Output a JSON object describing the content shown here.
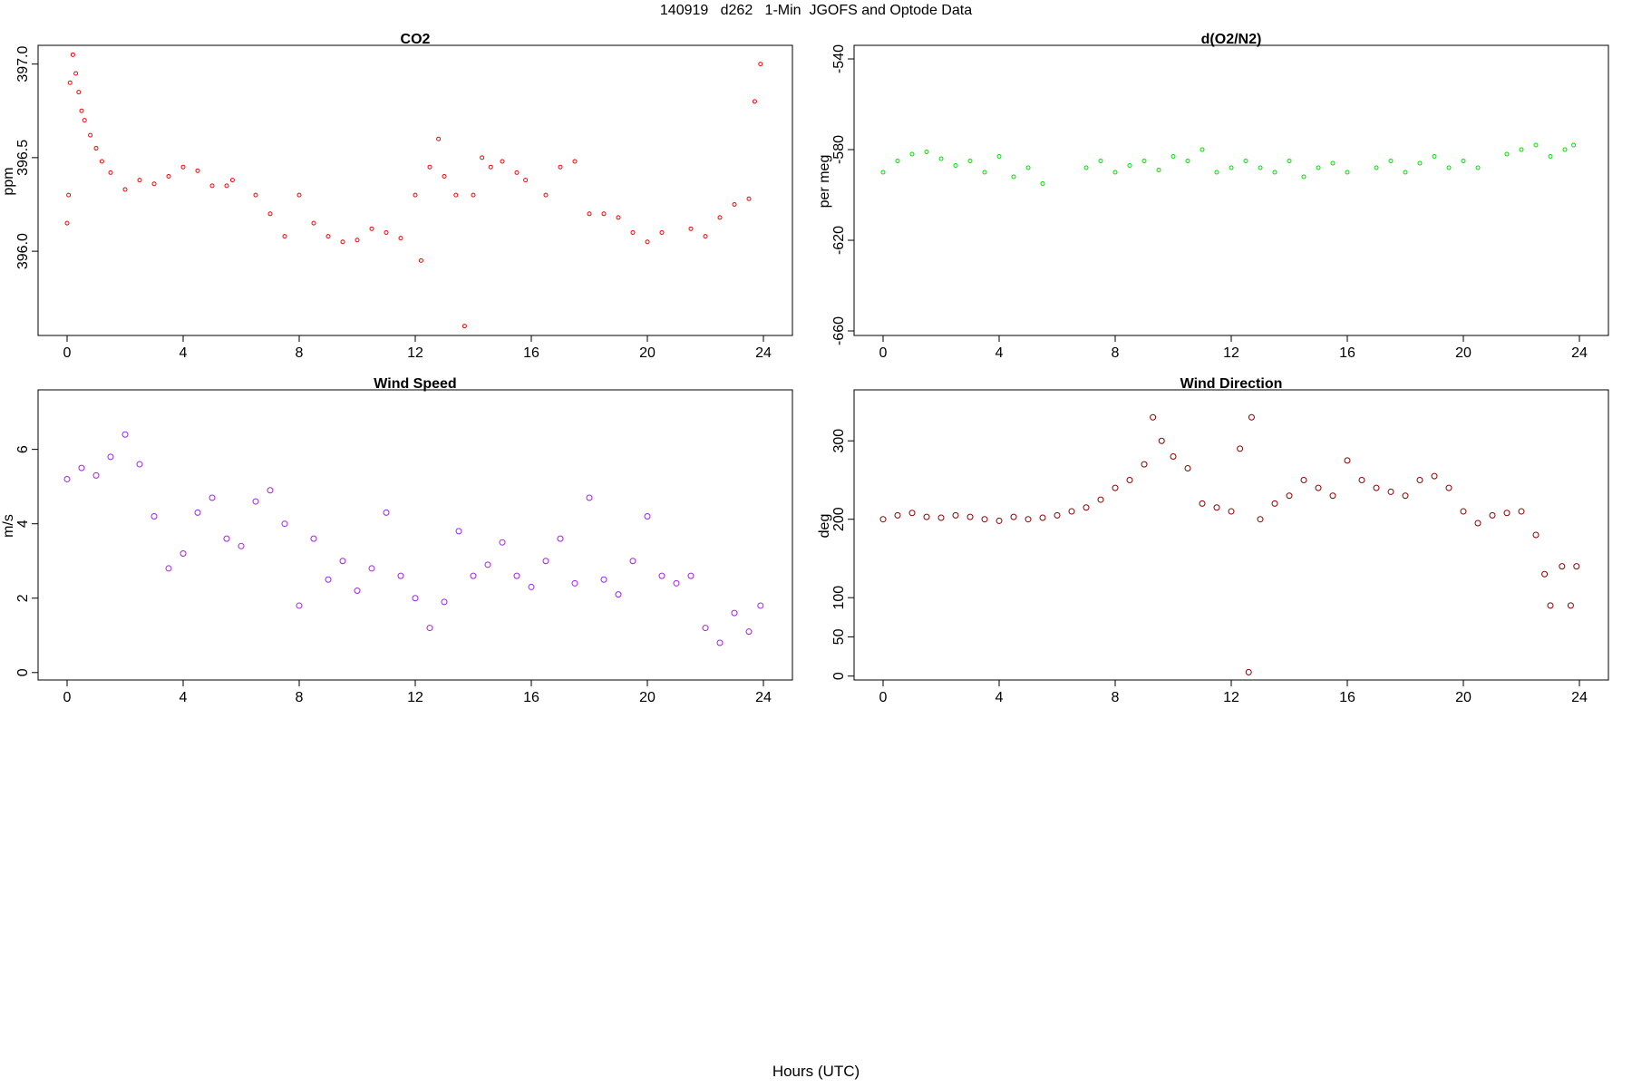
{
  "page": {
    "title": "140919   d262   1-Min  JGOFS and Optode Data",
    "xlabel": "Hours (UTC)"
  },
  "chart_data": [
    {
      "id": "co2",
      "type": "scatter",
      "title": "CO2",
      "ylabel": "ppm",
      "xlabel": "",
      "xlim": [
        -1.0,
        25.0
      ],
      "ylim": [
        395.55,
        397.1
      ],
      "xticks": [
        0,
        4,
        8,
        12,
        16,
        20,
        24
      ],
      "yticks": [
        396.0,
        396.5,
        397.0
      ],
      "ytick_labels": [
        "396.0",
        "396.5",
        "397.0"
      ],
      "color": "#ff0000",
      "grid": false,
      "series": [
        {
          "x": [
            0.0,
            0.05,
            0.1,
            0.2,
            0.3,
            0.4,
            0.5,
            0.6,
            0.8,
            1.0,
            1.2,
            1.5,
            2.0,
            2.5,
            3.0,
            3.5,
            4.0,
            4.5,
            5.0,
            5.5,
            5.7,
            6.5,
            7.0,
            7.5,
            8.0,
            8.5,
            9.0,
            9.5,
            10.0,
            10.5,
            11.0,
            11.5,
            12.0,
            12.2,
            12.5,
            12.8,
            13.0,
            13.4,
            13.7,
            14.0,
            14.3,
            14.6,
            15.0,
            15.5,
            15.8,
            16.5,
            17.0,
            17.5,
            18.0,
            18.5,
            19.0,
            19.5,
            20.0,
            20.5,
            21.5,
            22.0,
            22.5,
            23.0,
            23.5,
            23.7,
            23.9
          ],
          "y": [
            396.15,
            396.3,
            396.9,
            397.05,
            396.95,
            396.85,
            396.75,
            396.7,
            396.62,
            396.55,
            396.48,
            396.42,
            396.33,
            396.38,
            396.36,
            396.4,
            396.45,
            396.43,
            396.35,
            396.35,
            396.38,
            396.3,
            396.2,
            396.08,
            396.3,
            396.15,
            396.08,
            396.05,
            396.06,
            396.12,
            396.1,
            396.07,
            396.3,
            395.95,
            396.45,
            396.6,
            396.4,
            396.3,
            395.6,
            396.3,
            396.5,
            396.45,
            396.48,
            396.42,
            396.38,
            396.3,
            396.45,
            396.48,
            396.2,
            396.2,
            396.18,
            396.1,
            396.05,
            396.1,
            396.12,
            396.08,
            396.18,
            396.25,
            396.28,
            396.8,
            397.0
          ]
        }
      ]
    },
    {
      "id": "o2n2",
      "type": "scatter",
      "title": "d(O2/N2)",
      "ylabel": "per meg",
      "xlabel": "",
      "xlim": [
        -1.0,
        25.0
      ],
      "ylim": [
        -662,
        -534
      ],
      "xticks": [
        0,
        4,
        8,
        12,
        16,
        20,
        24
      ],
      "yticks": [
        -660,
        -620,
        -580,
        -540
      ],
      "ytick_labels": [
        "-660",
        "-620",
        "-580",
        "-540"
      ],
      "color": "#00e000",
      "grid": false,
      "series": [
        {
          "x": [
            0.0,
            0.5,
            1.0,
            1.5,
            2.0,
            2.5,
            3.0,
            3.5,
            4.0,
            4.5,
            5.0,
            5.5,
            7.0,
            7.5,
            8.0,
            8.5,
            9.0,
            9.5,
            10.0,
            10.5,
            11.0,
            11.5,
            12.0,
            12.5,
            13.0,
            13.5,
            14.0,
            14.5,
            15.0,
            15.5,
            16.0,
            17.0,
            17.5,
            18.0,
            18.5,
            19.0,
            19.5,
            20.0,
            20.5,
            21.5,
            22.0,
            22.5,
            23.0,
            23.5,
            23.8
          ],
          "y": [
            -590,
            -585,
            -582,
            -581,
            -584,
            -587,
            -585,
            -590,
            -583,
            -592,
            -588,
            -595,
            -588,
            -585,
            -590,
            -587,
            -585,
            -589,
            -583,
            -585,
            -580,
            -590,
            -588,
            -585,
            -588,
            -590,
            -585,
            -592,
            -588,
            -586,
            -590,
            -588,
            -585,
            -590,
            -586,
            -583,
            -588,
            -585,
            -588,
            -582,
            -580,
            -578,
            -583,
            -580,
            -578
          ]
        }
      ]
    },
    {
      "id": "wind_speed",
      "type": "scatter",
      "title": "Wind Speed",
      "ylabel": "m/s",
      "xlabel": "",
      "xlim": [
        -1.0,
        25.0
      ],
      "ylim": [
        -0.2,
        7.6
      ],
      "xticks": [
        0,
        4,
        8,
        12,
        16,
        20,
        24
      ],
      "yticks": [
        0,
        2,
        4,
        6
      ],
      "ytick_labels": [
        "0",
        "2",
        "4",
        "6"
      ],
      "color": "#a020f0",
      "grid": false,
      "series": [
        {
          "x": [
            0.0,
            0.5,
            1.0,
            1.5,
            2.0,
            2.5,
            3.0,
            3.5,
            4.0,
            4.5,
            5.0,
            5.5,
            6.0,
            6.5,
            7.0,
            7.5,
            8.0,
            8.5,
            9.0,
            9.5,
            10.0,
            10.5,
            11.0,
            11.5,
            12.0,
            12.5,
            13.0,
            13.5,
            14.0,
            14.5,
            15.0,
            15.5,
            16.0,
            16.5,
            17.0,
            17.5,
            18.0,
            18.5,
            19.0,
            19.5,
            20.0,
            20.5,
            21.0,
            21.5,
            22.0,
            22.5,
            23.0,
            23.5,
            23.9
          ],
          "y": [
            5.2,
            5.5,
            5.3,
            5.8,
            6.4,
            5.6,
            4.2,
            2.8,
            3.2,
            4.3,
            4.7,
            3.6,
            3.4,
            4.6,
            4.9,
            4.0,
            1.8,
            3.6,
            2.5,
            3.0,
            2.2,
            2.8,
            4.3,
            2.6,
            2.0,
            1.2,
            1.9,
            3.8,
            2.6,
            2.9,
            3.5,
            2.6,
            2.3,
            3.0,
            3.6,
            2.4,
            4.7,
            2.5,
            2.1,
            3.0,
            4.2,
            2.6,
            2.4,
            2.6,
            1.2,
            0.8,
            1.6,
            1.1,
            1.8
          ]
        }
      ]
    },
    {
      "id": "wind_direction",
      "type": "scatter",
      "title": "Wind Direction",
      "ylabel": "deg",
      "xlabel": "",
      "xlim": [
        -1.0,
        25.0
      ],
      "ylim": [
        -5,
        365
      ],
      "xticks": [
        0,
        4,
        8,
        12,
        16,
        20,
        24
      ],
      "yticks": [
        0,
        50,
        100,
        200,
        300
      ],
      "ytick_labels": [
        "0",
        "50",
        "100",
        "200",
        "300"
      ],
      "color": "#8b0000",
      "grid": false,
      "series": [
        {
          "x": [
            0.0,
            0.5,
            1.0,
            1.5,
            2.0,
            2.5,
            3.0,
            3.5,
            4.0,
            4.5,
            5.0,
            5.5,
            6.0,
            6.5,
            7.0,
            7.5,
            8.0,
            8.5,
            9.0,
            9.3,
            9.6,
            10.0,
            10.5,
            11.0,
            11.5,
            12.0,
            12.3,
            12.6,
            12.7,
            13.0,
            13.5,
            14.0,
            14.5,
            15.0,
            15.5,
            16.0,
            16.5,
            17.0,
            17.5,
            18.0,
            18.5,
            19.0,
            19.5,
            20.0,
            20.5,
            21.0,
            21.5,
            22.0,
            22.5,
            22.8,
            23.0,
            23.4,
            23.7,
            23.9
          ],
          "y": [
            200,
            205,
            208,
            203,
            202,
            205,
            203,
            200,
            198,
            203,
            200,
            202,
            205,
            210,
            215,
            225,
            240,
            250,
            270,
            330,
            300,
            280,
            265,
            220,
            215,
            210,
            290,
            5,
            330,
            200,
            220,
            230,
            250,
            240,
            230,
            275,
            250,
            240,
            235,
            230,
            250,
            255,
            240,
            210,
            195,
            205,
            208,
            210,
            180,
            130,
            90,
            140,
            90,
            140
          ]
        }
      ]
    }
  ]
}
